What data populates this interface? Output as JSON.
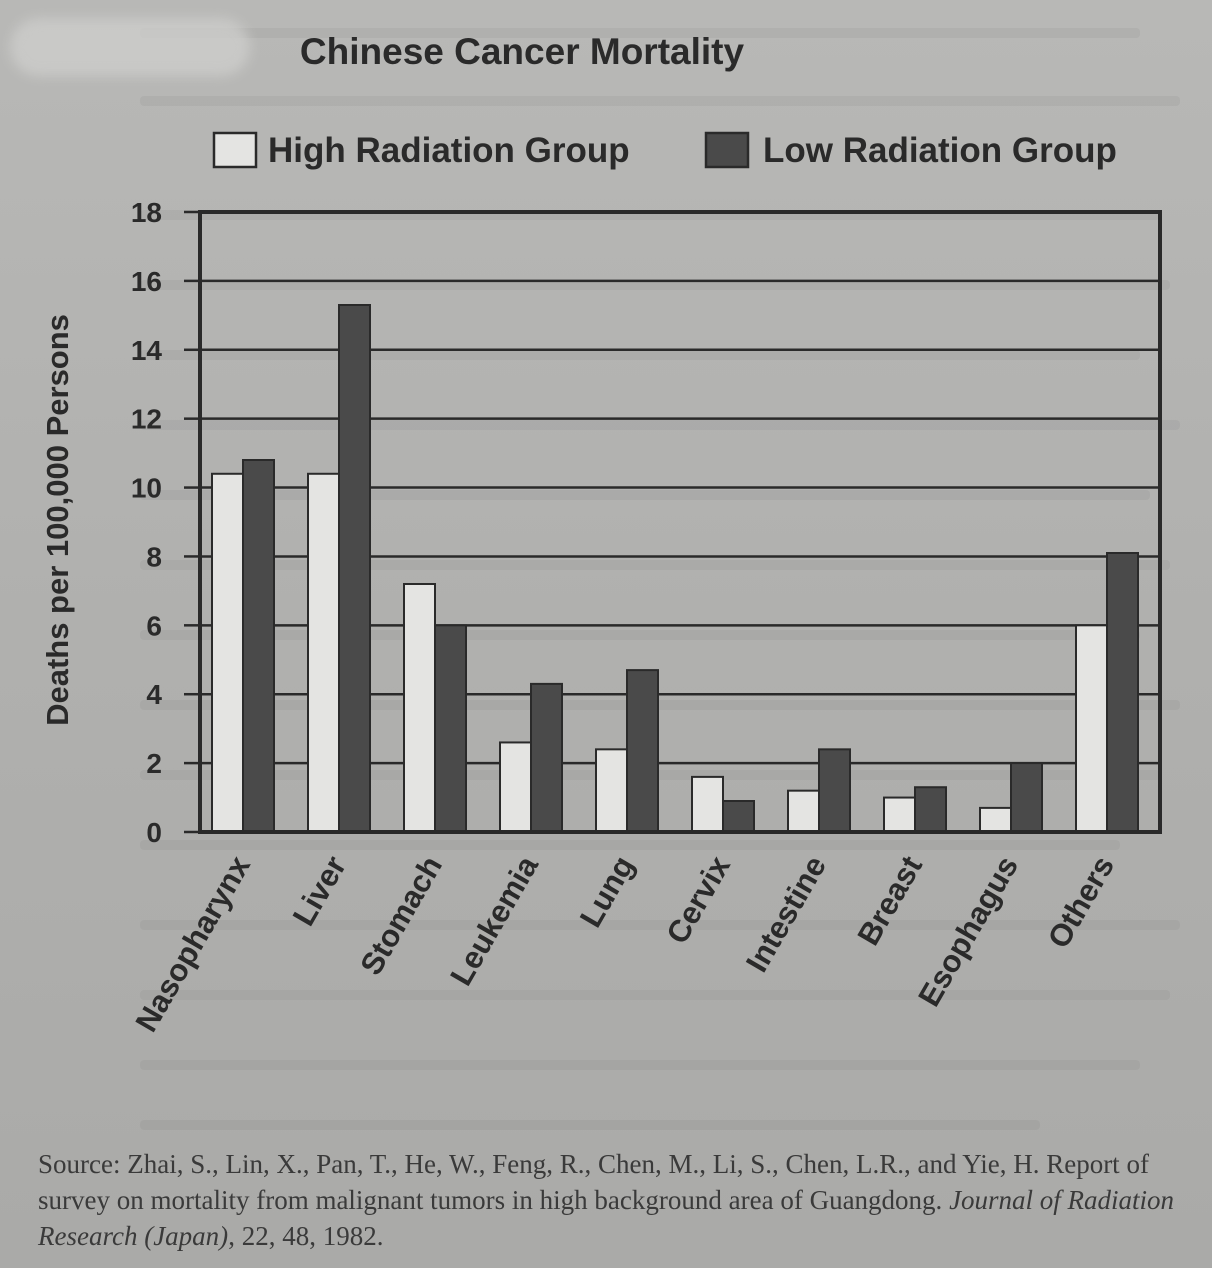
{
  "chart_data": {
    "type": "bar",
    "title": "Chinese Cancer Mortality",
    "ylabel": "Deaths per 100,000 Persons",
    "xlabel": "",
    "categories": [
      "Nasopharynx",
      "Liver",
      "Stomach",
      "Leukemia",
      "Lung",
      "Cervix",
      "Intestine",
      "Breast",
      "Esophagus",
      "Others"
    ],
    "series": [
      {
        "name": "High Radiation Group",
        "color": "#e4e4e2",
        "values": [
          10.4,
          10.4,
          7.2,
          2.6,
          2.4,
          1.6,
          1.2,
          1.0,
          0.7,
          6.0
        ]
      },
      {
        "name": "Low Radiation Group",
        "color": "#4a4a4a",
        "values": [
          10.8,
          15.3,
          6.0,
          4.3,
          4.7,
          0.9,
          2.4,
          1.3,
          2.0,
          8.1
        ]
      }
    ],
    "ylim": [
      0,
      18
    ],
    "yticks": [
      0,
      2,
      4,
      6,
      8,
      10,
      12,
      14,
      16,
      18
    ],
    "grid": true,
    "legend_position": "top"
  },
  "source": {
    "prefix": "Source: Zhai, S., Lin, X., Pan, T., He, W., Feng, R., Chen, M., Li, S., Chen, L.R., and Yie, H. Report of survey on mortality from malignant tumors in high background area of Guangdong. ",
    "journal": "Journal of Radiation Research (Japan)",
    "suffix": ", 22, 48, 1982."
  }
}
